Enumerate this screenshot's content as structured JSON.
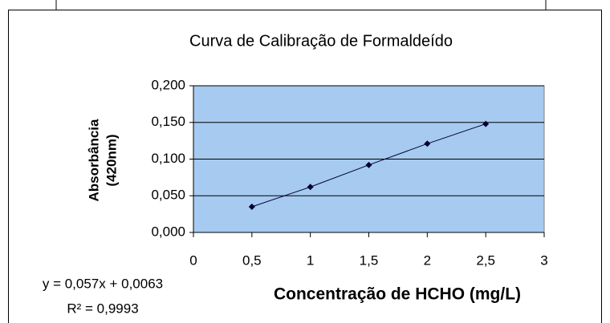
{
  "chart_data": {
    "type": "scatter",
    "title": "Curva de Calibração de Formaldeído",
    "xlabel": "Concentração de HCHO (mg/L)",
    "ylabel": [
      "Absorbância",
      "(420nm)"
    ],
    "annotations": [
      "y = 0,057x + 0,0063",
      "R² = 0,9993"
    ],
    "x": [
      0.5,
      1,
      1.5,
      2,
      2.5
    ],
    "series": [
      {
        "color": "#000033",
        "values": [
          0.035,
          0.062,
          0.092,
          0.121,
          0.148
        ]
      }
    ],
    "xlim": [
      0,
      3
    ],
    "xticks": [
      0,
      {
        "value": 0.5,
        "label": "0,5"
      },
      1,
      {
        "value": 1.5,
        "label": "1,5"
      },
      2,
      {
        "value": 2.5,
        "label": "2,5"
      },
      3
    ],
    "ylim": [
      0,
      0.2
    ],
    "yticks": [
      {
        "value": 0,
        "label": "0,000"
      },
      {
        "value": 0.05,
        "label": "0,050"
      },
      {
        "value": 0.1,
        "label": "0,100"
      },
      {
        "value": 0.15,
        "label": "0,150"
      },
      {
        "value": 0.2,
        "label": "0,200"
      }
    ],
    "grid": true,
    "plot_background": "#a6caf0"
  }
}
